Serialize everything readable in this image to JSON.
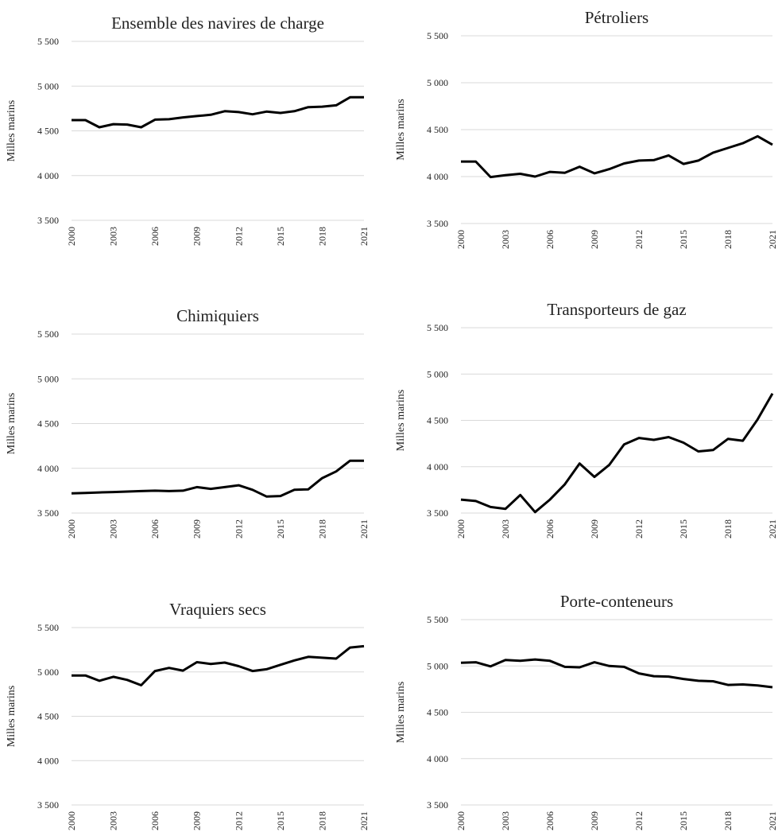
{
  "chart_data": [
    {
      "type": "line",
      "title": "Ensemble des navires de charge",
      "y_label": "Milles marins",
      "x": [
        2000,
        2001,
        2002,
        2003,
        2004,
        2005,
        2006,
        2007,
        2008,
        2009,
        2010,
        2011,
        2012,
        2013,
        2014,
        2015,
        2016,
        2017,
        2018,
        2019,
        2020,
        2021
      ],
      "values": [
        4620,
        4620,
        4540,
        4575,
        4570,
        4540,
        4625,
        4630,
        4650,
        4665,
        4680,
        4720,
        4710,
        4685,
        4715,
        4700,
        4720,
        4765,
        4770,
        4785,
        4875,
        4875
      ],
      "color": "#000000",
      "xlim": [
        2000,
        2021
      ],
      "xticks": [
        2000,
        2003,
        2006,
        2009,
        2012,
        2015,
        2018,
        2021
      ],
      "ylim": [
        3500,
        5500
      ],
      "yticks": [
        {
          "value": 3500,
          "label": "3 500"
        },
        {
          "value": 4000,
          "label": "4 000"
        },
        {
          "value": 4500,
          "label": "4 500"
        },
        {
          "value": 5000,
          "label": "5 000"
        },
        {
          "value": 5500,
          "label": "5 500"
        }
      ],
      "grid": true
    },
    {
      "type": "line",
      "title": "Pétroliers",
      "y_label": "Milles marins",
      "x": [
        2000,
        2001,
        2002,
        2003,
        2004,
        2005,
        2006,
        2007,
        2008,
        2009,
        2010,
        2011,
        2012,
        2013,
        2014,
        2015,
        2016,
        2017,
        2018,
        2019,
        2020,
        2021
      ],
      "values": [
        4160,
        4160,
        3995,
        4015,
        4030,
        4000,
        4050,
        4040,
        4105,
        4035,
        4080,
        4140,
        4170,
        4175,
        4225,
        4135,
        4170,
        4255,
        4305,
        4355,
        4430,
        4340
      ],
      "color": "#000000",
      "xlim": [
        2000,
        2021
      ],
      "xticks": [
        2000,
        2003,
        2006,
        2009,
        2012,
        2015,
        2018,
        2021
      ],
      "ylim": [
        3500,
        5500
      ],
      "yticks": [
        {
          "value": 3500,
          "label": "3 500"
        },
        {
          "value": 4000,
          "label": "4 000"
        },
        {
          "value": 4500,
          "label": "4 500"
        },
        {
          "value": 5000,
          "label": "5 000"
        },
        {
          "value": 5500,
          "label": "5 500"
        }
      ],
      "grid": true
    },
    {
      "type": "line",
      "title": "Chimiquiers",
      "y_label": "Milles marins",
      "x": [
        2000,
        2001,
        2002,
        2003,
        2004,
        2005,
        2006,
        2007,
        2008,
        2009,
        2010,
        2011,
        2012,
        2013,
        2014,
        2015,
        2016,
        2017,
        2018,
        2019,
        2020,
        2021
      ],
      "values": [
        3720,
        3725,
        3730,
        3735,
        3740,
        3745,
        3750,
        3745,
        3750,
        3790,
        3770,
        3790,
        3810,
        3760,
        3685,
        3690,
        3760,
        3765,
        3890,
        3965,
        4085,
        4085
      ],
      "color": "#000000",
      "xlim": [
        2000,
        2021
      ],
      "xticks": [
        2000,
        2003,
        2006,
        2009,
        2012,
        2015,
        2018,
        2021
      ],
      "ylim": [
        3500,
        5500
      ],
      "yticks": [
        {
          "value": 3500,
          "label": "3 500"
        },
        {
          "value": 4000,
          "label": "4 000"
        },
        {
          "value": 4500,
          "label": "4 500"
        },
        {
          "value": 5000,
          "label": "5 000"
        },
        {
          "value": 5500,
          "label": "5 500"
        }
      ],
      "grid": true
    },
    {
      "type": "line",
      "title": "Transporteurs de gaz",
      "y_label": "Milles marins",
      "x": [
        2000,
        2001,
        2002,
        2003,
        2004,
        2005,
        2006,
        2007,
        2008,
        2009,
        2010,
        2011,
        2012,
        2013,
        2014,
        2015,
        2016,
        2017,
        2018,
        2019,
        2020,
        2021
      ],
      "values": [
        3645,
        3630,
        3565,
        3545,
        3695,
        3510,
        3645,
        3810,
        4035,
        3890,
        4020,
        4240,
        4310,
        4290,
        4320,
        4260,
        4165,
        4180,
        4300,
        4280,
        4510,
        4790
      ],
      "color": "#000000",
      "xlim": [
        2000,
        2021
      ],
      "xticks": [
        2000,
        2003,
        2006,
        2009,
        2012,
        2015,
        2018,
        2021
      ],
      "ylim": [
        3500,
        5500
      ],
      "yticks": [
        {
          "value": 3500,
          "label": "3 500"
        },
        {
          "value": 4000,
          "label": "4 000"
        },
        {
          "value": 4500,
          "label": "4 500"
        },
        {
          "value": 5000,
          "label": "5 000"
        },
        {
          "value": 5500,
          "label": "5 500"
        }
      ],
      "grid": true
    },
    {
      "type": "line",
      "title": "Vraquiers secs",
      "y_label": "Milles marins",
      "x": [
        2000,
        2001,
        2002,
        2003,
        2004,
        2005,
        2006,
        2007,
        2008,
        2009,
        2010,
        2011,
        2012,
        2013,
        2014,
        2015,
        2016,
        2017,
        2018,
        2019,
        2020,
        2021
      ],
      "values": [
        4960,
        4960,
        4900,
        4945,
        4910,
        4850,
        5010,
        5045,
        5015,
        5110,
        5090,
        5105,
        5065,
        5010,
        5030,
        5080,
        5130,
        5170,
        5160,
        5150,
        5275,
        5290
      ],
      "color": "#000000",
      "xlim": [
        2000,
        2021
      ],
      "xticks": [
        2000,
        2003,
        2006,
        2009,
        2012,
        2015,
        2018,
        2021
      ],
      "ylim": [
        3500,
        5500
      ],
      "yticks": [
        {
          "value": 3500,
          "label": "3 500"
        },
        {
          "value": 4000,
          "label": "4 000"
        },
        {
          "value": 4500,
          "label": "4 500"
        },
        {
          "value": 5000,
          "label": "5 000"
        },
        {
          "value": 5500,
          "label": "5 500"
        }
      ],
      "grid": true
    },
    {
      "type": "line",
      "title": "Porte-conteneurs",
      "y_label": "Milles marins",
      "x": [
        2000,
        2001,
        2002,
        2003,
        2004,
        2005,
        2006,
        2007,
        2008,
        2009,
        2010,
        2011,
        2012,
        2013,
        2014,
        2015,
        2016,
        2017,
        2018,
        2019,
        2020,
        2021
      ],
      "values": [
        5035,
        5040,
        4995,
        5065,
        5055,
        5070,
        5055,
        4990,
        4985,
        5040,
        5000,
        4990,
        4920,
        4890,
        4885,
        4860,
        4840,
        4835,
        4795,
        4800,
        4790,
        4770
      ],
      "color": "#000000",
      "xlim": [
        2000,
        2021
      ],
      "xticks": [
        2000,
        2003,
        2006,
        2009,
        2012,
        2015,
        2018,
        2021
      ],
      "ylim": [
        3500,
        5500
      ],
      "yticks": [
        {
          "value": 3500,
          "label": "3 500"
        },
        {
          "value": 4000,
          "label": "4 000"
        },
        {
          "value": 4500,
          "label": "4 500"
        },
        {
          "value": 5000,
          "label": "5 000"
        },
        {
          "value": 5500,
          "label": "5 500"
        }
      ],
      "grid": true
    }
  ]
}
